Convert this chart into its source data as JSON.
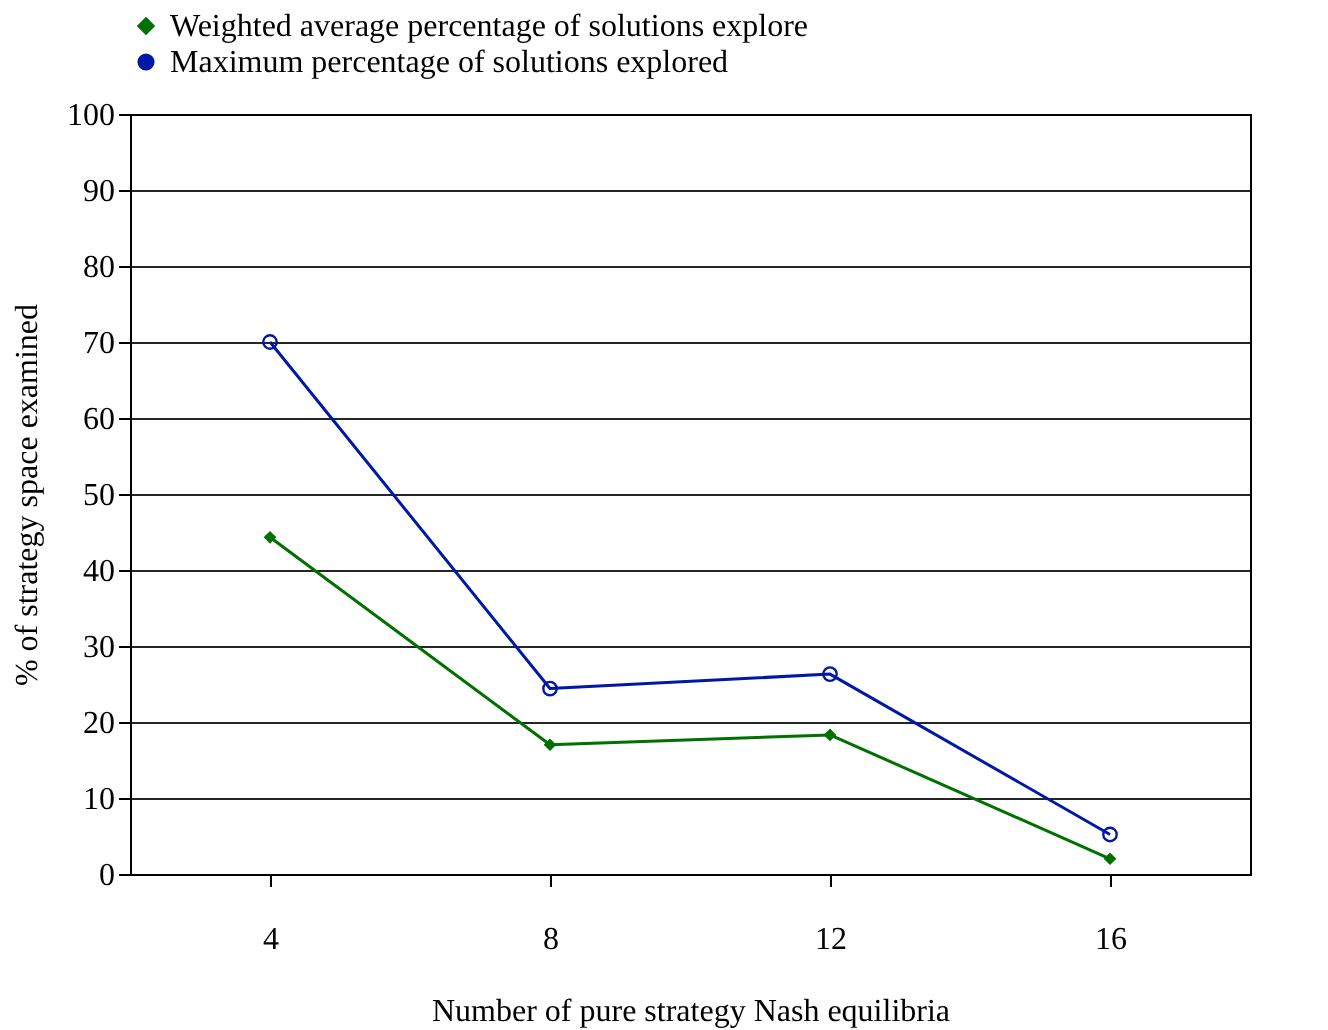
{
  "chart_data": {
    "type": "line",
    "xlabel": "Number of pure strategy Nash equilibria",
    "ylabel": "% of strategy space examined",
    "categories": [
      "4",
      "8",
      "12",
      "16"
    ],
    "series": [
      {
        "name": "Weighted average percentage of solutions explore",
        "color": "#007000",
        "marker": "diamond",
        "values": [
          44.3,
          17,
          18.3,
          2
        ]
      },
      {
        "name": "Maximum percentage of solutions explored",
        "color": "#0018a8",
        "marker": "circle",
        "values": [
          70,
          24.4,
          26.3,
          5.2
        ]
      }
    ],
    "ylim": [
      0,
      100
    ],
    "yticks": [
      0,
      10,
      20,
      30,
      40,
      50,
      60,
      70,
      80,
      90,
      100
    ],
    "grid": "y",
    "legend": "top",
    "line_style": "solid"
  }
}
